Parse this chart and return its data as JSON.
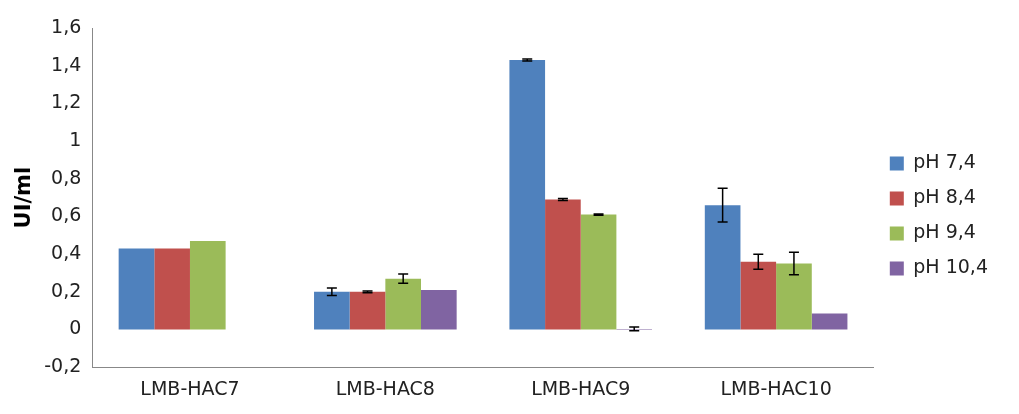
{
  "chart_data": {
    "type": "bar",
    "ylabel": "UI/ml",
    "categories": [
      "LMB-HAC7",
      "LMB-HAC8",
      "LMB-HAC9",
      "LMB-HAC10"
    ],
    "series": [
      {
        "name": "pH 7,4",
        "color": "#4f81bd",
        "values": [
          0.43,
          0.2,
          1.43,
          0.66
        ],
        "errors": [
          null,
          0.02,
          0.005,
          0.09
        ]
      },
      {
        "name": "pH 8,4",
        "color": "#c0504d",
        "values": [
          0.43,
          0.2,
          0.69,
          0.36
        ],
        "errors": [
          null,
          0.005,
          0.005,
          0.04
        ]
      },
      {
        "name": "pH 9,4",
        "color": "#9bbb59",
        "values": [
          0.47,
          0.27,
          0.61,
          0.35
        ],
        "errors": [
          null,
          0.025,
          0.003,
          0.06
        ]
      },
      {
        "name": "pH 10,4",
        "color": "#8064a2",
        "values": [
          null,
          0.21,
          0.003,
          0.085
        ],
        "errors": [
          null,
          null,
          0.01,
          null
        ]
      }
    ],
    "ylim": [
      -0.2,
      1.6
    ],
    "yticks": [
      {
        "value": -0.2,
        "label": "-0,2"
      },
      0,
      {
        "value": 0.2,
        "label": "0,2"
      },
      {
        "value": 0.4,
        "label": "0,4"
      },
      {
        "value": 0.6,
        "label": "0,6"
      },
      {
        "value": 0.8,
        "label": "0,8"
      },
      1,
      {
        "value": 1.2,
        "label": "1,2"
      },
      {
        "value": 1.4,
        "label": "1,4"
      },
      {
        "value": 1.6,
        "label": "1,6"
      }
    ],
    "grid": false,
    "legend": "right"
  }
}
